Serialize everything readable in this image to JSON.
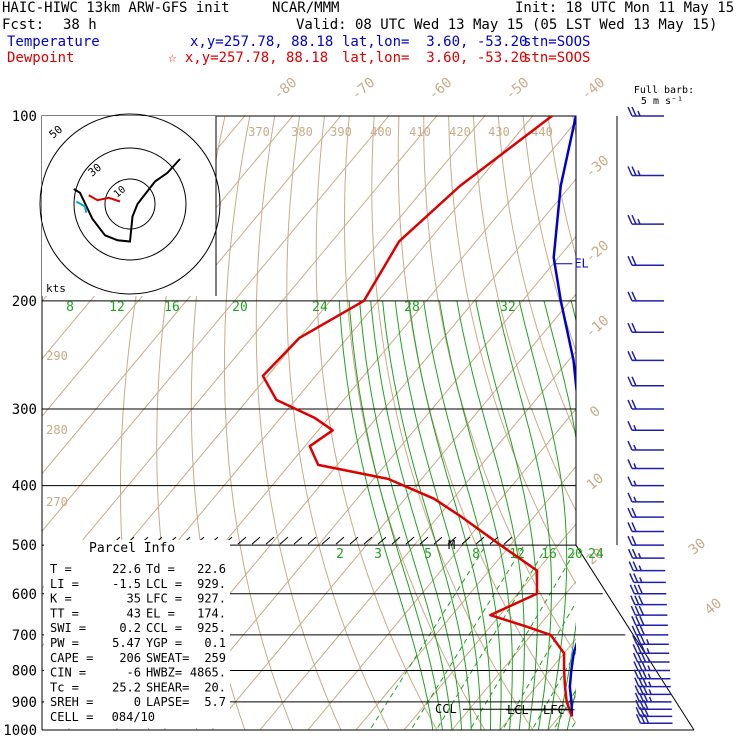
{
  "header": {
    "model": "HAIC-HIWC 13km ARW-GFS init",
    "org": "NCAR/MMM",
    "init": "Init: 18 UTC Mon 11 May 15",
    "fcst_label": "Fcst:",
    "fcst_value": "38 h",
    "valid": "Valid: 08 UTC Wed 13 May 15 (05 LST Wed 13 May 15)",
    "temperature_label": "Temperature",
    "dewpoint_label": "Dewpoint",
    "xy": "x,y=257.78, 88.18",
    "xy_dew": "☆ x,y=257.78, 88.18",
    "latlon": "lat,lon=  3.60, -53.20",
    "stn": "stn=SOOS",
    "colors": {
      "temperature": "#0000cc",
      "dewpoint": "#dd0000"
    }
  },
  "barb_key": {
    "line1": "Full barb:",
    "line2": "5 m s⁻¹"
  },
  "parcel_info": {
    "title": "Parcel Info",
    "rows": [
      {
        "l": "T   =",
        "lv": "22.6",
        "r": "Td =",
        "rv": "22.6"
      },
      {
        "l": "LI  =",
        "lv": "-1.5",
        "r": "LCL =",
        "rv": "929."
      },
      {
        "l": "K   =",
        "lv": "35",
        "r": "LFC =",
        "rv": "927."
      },
      {
        "l": "TT  =",
        "lv": "43",
        "r": "EL  =",
        "rv": "174."
      },
      {
        "l": "SWI =",
        "lv": "0.2",
        "r": "CCL =",
        "rv": "925."
      },
      {
        "l": "PW  =",
        "lv": "5.47",
        "r": "YGP =",
        "rv": "0.1"
      },
      {
        "l": "CAPE =",
        "lv": "206",
        "r": "SWEAT=",
        "rv": "259"
      },
      {
        "l": "CIN  =",
        "lv": "-6",
        "r": "HWBZ=",
        "rv": "4865."
      },
      {
        "l": "Tc  =",
        "lv": "25.2",
        "r": "SHEAR=",
        "rv": "20."
      },
      {
        "l": "SREH =",
        "lv": "0",
        "r": "LAPSE=",
        "rv": "5.7"
      },
      {
        "l": "CELL =",
        "lv": "084/10",
        "r": "",
        "rv": ""
      }
    ]
  },
  "chart_data": {
    "type": "line",
    "chart_kind": "skew-T log-p sounding",
    "y_axis": {
      "pressure_levels_hPa": [
        100,
        200,
        300,
        400,
        500,
        600,
        700,
        800,
        900,
        1000
      ],
      "scale": "log",
      "ylim": [
        1000,
        100
      ]
    },
    "isotherm_labels_C": [
      -80,
      -70,
      -60,
      -50,
      -40,
      -30,
      -20,
      -10,
      0,
      10,
      20,
      30,
      40
    ],
    "isentrope_labels_K": [
      270,
      280,
      290,
      370,
      380,
      390,
      400,
      410,
      420,
      430,
      440
    ],
    "moist_adiabat_labels_C": [
      8,
      12,
      16,
      20,
      24,
      28,
      32
    ],
    "mixing_ratio_labels_gkg": [
      2,
      3,
      5,
      8,
      12,
      16,
      20,
      24
    ],
    "series": [
      {
        "name": "Temperature",
        "color": "#0000cc",
        "points": [
          [
            100,
            -81
          ],
          [
            130,
            -72
          ],
          [
            170,
            -61
          ],
          [
            200,
            -52
          ],
          [
            250,
            -39
          ],
          [
            300,
            -29.5
          ],
          [
            350,
            -19
          ],
          [
            400,
            -11
          ],
          [
            450,
            -5
          ],
          [
            500,
            -1
          ],
          [
            600,
            5.5
          ],
          [
            700,
            10
          ],
          [
            750,
            12
          ],
          [
            800,
            14.5
          ],
          [
            850,
            17
          ],
          [
            900,
            20
          ],
          [
            950,
            22.6
          ]
        ]
      },
      {
        "name": "Dewpoint",
        "color": "#dd0000",
        "points": [
          [
            100,
            -86
          ],
          [
            130,
            -93
          ],
          [
            160,
            -96
          ],
          [
            200,
            -93
          ],
          [
            230,
            -100
          ],
          [
            265,
            -101
          ],
          [
            290,
            -94
          ],
          [
            310,
            -83
          ],
          [
            325,
            -77
          ],
          [
            345,
            -79
          ],
          [
            370,
            -74
          ],
          [
            390,
            -57
          ],
          [
            420,
            -44
          ],
          [
            450,
            -35
          ],
          [
            500,
            -22
          ],
          [
            550,
            -10
          ],
          [
            600,
            -6
          ],
          [
            650,
            -12
          ],
          [
            680,
            -2
          ],
          [
            700,
            4
          ],
          [
            750,
            10
          ],
          [
            800,
            13
          ],
          [
            850,
            16
          ],
          [
            900,
            19
          ],
          [
            950,
            22.6
          ]
        ]
      }
    ],
    "annotations": [
      {
        "text": "EL",
        "pressure": 174
      },
      {
        "text": "M",
        "pressure": 500
      },
      {
        "text": "CCL",
        "pressure": 925
      },
      {
        "text": "LCL",
        "pressure": 929
      },
      {
        "text": "LFC",
        "pressure": 927
      }
    ],
    "hodograph": {
      "ring_labels": [
        "50",
        "30",
        "10"
      ],
      "units_label": "kts",
      "line_color": "#000000",
      "low_segment_colors": [
        "#00aacc",
        "#dd0000"
      ],
      "points": [
        [
          -4.5,
          1.2
        ],
        [
          -4.0,
          0.9
        ],
        [
          -3.0,
          -1.2
        ],
        [
          -2.0,
          -2.5
        ],
        [
          -1.0,
          -2.9
        ],
        [
          0.0,
          -3.0
        ],
        [
          0.2,
          -1.0
        ],
        [
          0.6,
          0.0
        ],
        [
          2.0,
          1.8
        ],
        [
          3.0,
          2.5
        ],
        [
          4.0,
          3.6
        ]
      ]
    },
    "wind_profile": {
      "pressures_hPa": [
        100,
        125,
        150,
        175,
        200,
        225,
        250,
        275,
        300,
        325,
        350,
        375,
        400,
        425,
        450,
        475,
        500,
        525,
        550,
        575,
        600,
        625,
        650,
        675,
        700,
        725,
        750,
        775,
        800,
        825,
        850,
        875,
        900,
        925,
        950,
        975
      ],
      "speed_ms": [
        12,
        12,
        12,
        11,
        11,
        10,
        10,
        9,
        9,
        8,
        8,
        7,
        7,
        8,
        9,
        10,
        11,
        12,
        13,
        13,
        14,
        14,
        15,
        16,
        16,
        17,
        17,
        18,
        18,
        18,
        17,
        17,
        17,
        16,
        15,
        15
      ],
      "direction_deg": [
        60,
        60,
        60,
        65,
        65,
        70,
        70,
        70,
        75,
        75,
        80,
        90,
        100,
        110,
        120,
        125,
        125,
        120,
        115,
        110,
        110,
        105,
        100,
        100,
        95,
        95,
        95,
        95,
        95,
        95,
        95,
        90,
        90,
        90,
        90,
        90
      ]
    }
  }
}
